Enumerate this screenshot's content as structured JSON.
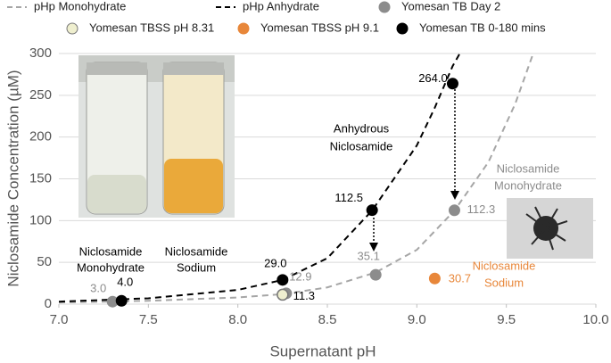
{
  "chart_data": {
    "type": "scatter",
    "x_label": "Supernatant pH",
    "y_label": "Niclosamide Concentration (µM)",
    "xlim": [
      7,
      10
    ],
    "xticks": [
      {
        "value": 7,
        "label": "7.0"
      },
      {
        "value": 7.5,
        "label": "7.5"
      },
      {
        "value": 8,
        "label": "8.0"
      },
      {
        "value": 8.5,
        "label": "8.5"
      },
      {
        "value": 9,
        "label": "9.0"
      },
      {
        "value": 9.5,
        "label": "9.5"
      },
      {
        "value": 10,
        "label": "10.0"
      }
    ],
    "ylim": [
      0,
      300
    ],
    "yticks": [
      0,
      50,
      100,
      150,
      200,
      250,
      300
    ],
    "grid": true,
    "series": [
      {
        "name": "pHp Monohydrate",
        "mode": "dashed-line",
        "color": "#a6a6a6",
        "x": [
          7.0,
          7.5,
          8.0,
          8.25,
          8.5,
          8.77,
          9.0,
          9.21,
          9.4,
          9.55,
          9.65
        ],
        "values": [
          2,
          4,
          8,
          12,
          20,
          38,
          65,
          112,
          170,
          240,
          300
        ]
      },
      {
        "name": "pHp Anhydrate",
        "mode": "dashed-line",
        "color": "#000000",
        "x": [
          7.0,
          7.5,
          8.0,
          8.25,
          8.5,
          8.75,
          9.0,
          9.1,
          9.2,
          9.24
        ],
        "values": [
          3,
          7,
          17,
          29,
          55,
          112,
          190,
          235,
          285,
          300
        ]
      },
      {
        "name": "Yomesan TB Day 2",
        "mode": "marker",
        "color": "#8c8c8c",
        "label_color": "#8c8c8c",
        "x": [
          7.3,
          8.27,
          8.77,
          9.21
        ],
        "values": [
          3,
          12.9,
          35.1,
          112.3
        ],
        "value_labels": [
          "3.0",
          "12.9",
          "35.1",
          "112.3"
        ]
      },
      {
        "name": "Yomesan TBSS pH 8.31",
        "mode": "marker",
        "color": "#efefcf",
        "label_color": "#000000",
        "x": [
          8.25
        ],
        "values": [
          11.3
        ],
        "value_labels": [
          "11.3"
        ]
      },
      {
        "name": "Yomesan TBSS pH 9.1",
        "mode": "marker",
        "color": "#e8873a",
        "label_color": "#e8873a",
        "x": [
          9.1
        ],
        "values": [
          30.7
        ],
        "value_labels": [
          "30.7"
        ]
      },
      {
        "name": "Yomesan TB 0-180 mins",
        "mode": "marker",
        "color": "#000000",
        "label_color": "#000000",
        "x": [
          7.35,
          8.25,
          8.75,
          9.2
        ],
        "values": [
          4,
          29,
          112.5,
          264
        ],
        "value_labels": [
          "4.0",
          "29.0",
          "112.5",
          "264.0"
        ]
      }
    ],
    "annotations": [
      [
        "Anhydrous",
        "Niclosamide"
      ],
      [
        "Niclosamide",
        "Monohydrate"
      ],
      [
        "Niclosamide",
        "Sodium"
      ],
      [
        "Niclosamide",
        "Monohydrate"
      ],
      [
        "Niclosamide",
        "Sodium"
      ]
    ]
  }
}
